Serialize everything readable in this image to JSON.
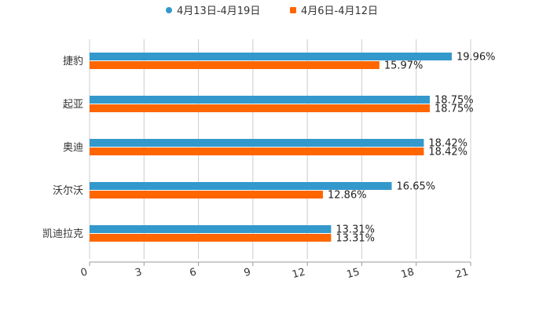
{
  "chart_data": {
    "type": "bar",
    "orientation": "horizontal",
    "title": "",
    "xlabel": "",
    "ylabel": "",
    "categories": [
      "捷豹",
      "起亚",
      "奥迪",
      "沃尔沃",
      "凯迪拉克"
    ],
    "series": [
      {
        "name": "4月13日-4月19日",
        "color": "#3399cc",
        "values": [
          19.96,
          18.75,
          18.42,
          16.65,
          13.31
        ],
        "labels": [
          "19.96%",
          "18.75%",
          "18.42%",
          "16.65%",
          "13.31%"
        ]
      },
      {
        "name": "4月6日-4月12日",
        "color": "#ff6600",
        "values": [
          15.97,
          18.75,
          18.42,
          12.86,
          13.31
        ],
        "labels": [
          "15.97%",
          "18.75%",
          "18.42%",
          "12.86%",
          "13.31%"
        ]
      }
    ],
    "xlim": [
      0,
      21
    ],
    "xticks": [
      "0",
      "3",
      "6",
      "9",
      "12",
      "15",
      "18",
      "21"
    ],
    "grid": true,
    "legend_position": "top-center"
  }
}
